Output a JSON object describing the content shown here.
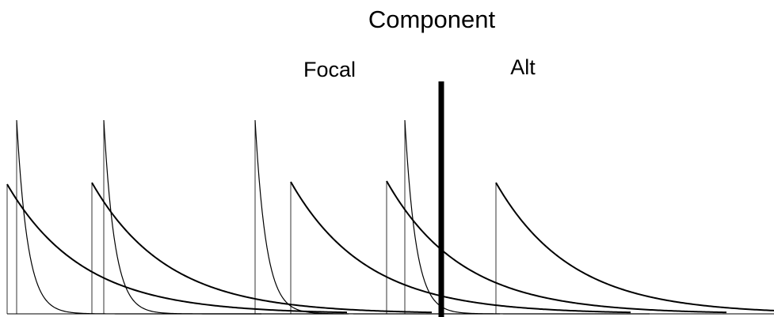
{
  "labels": {
    "title": "Component",
    "left": "Focal",
    "right": "Alt"
  },
  "colors": {
    "stroke": "#000000",
    "background": "#ffffff"
  }
}
